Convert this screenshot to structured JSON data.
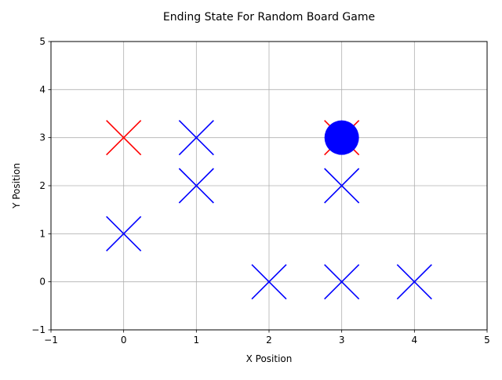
{
  "chart_data": {
    "type": "scatter",
    "title": "Ending State For Random Board Game",
    "xlabel": "X Position",
    "ylabel": "Y Position",
    "xlim": [
      -1,
      5
    ],
    "ylim": [
      -1,
      5
    ],
    "xticks": [
      "−1",
      "0",
      "1",
      "2",
      "3",
      "4",
      "5"
    ],
    "yticks": [
      "−1",
      "0",
      "1",
      "2",
      "3",
      "4",
      "5"
    ],
    "grid": true,
    "series": [
      {
        "marker": "x",
        "color": "#ff0000",
        "points": [
          [
            0,
            3
          ],
          [
            3,
            3
          ]
        ]
      },
      {
        "marker": "x",
        "color": "#0000ff",
        "points": [
          [
            1,
            3
          ],
          [
            1,
            2
          ],
          [
            0,
            1
          ],
          [
            3,
            2
          ],
          [
            2,
            0
          ],
          [
            3,
            0
          ],
          [
            4,
            0
          ]
        ]
      },
      {
        "marker": "circle",
        "color": "#0000ff",
        "points": [
          [
            3,
            3
          ]
        ]
      }
    ]
  }
}
